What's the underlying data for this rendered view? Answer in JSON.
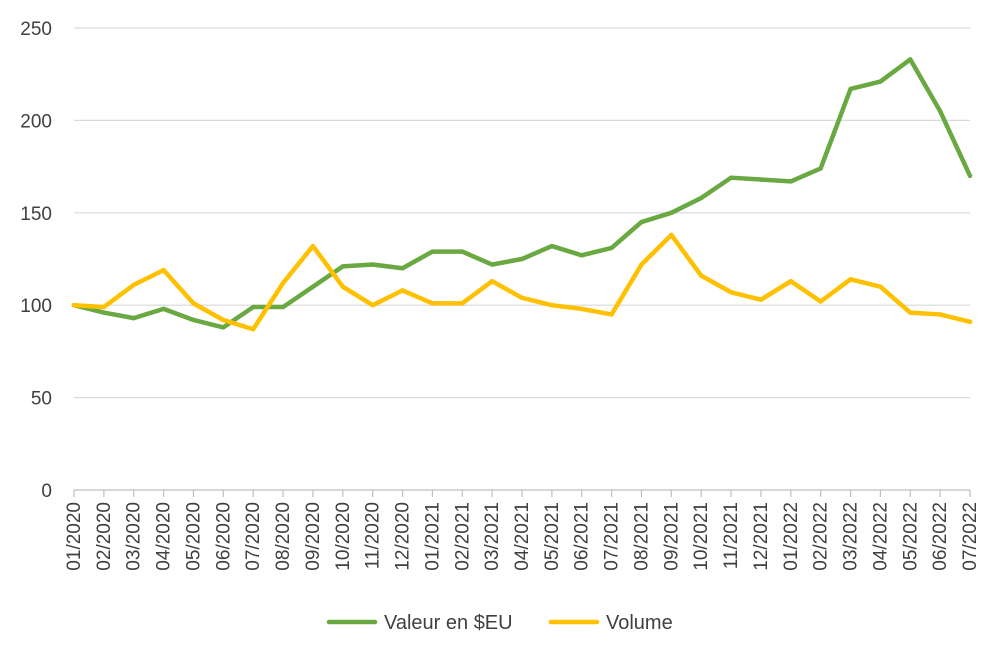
{
  "chart_data": {
    "type": "line",
    "title": "",
    "xlabel": "",
    "ylabel": "",
    "ylim": [
      0,
      250
    ],
    "yticks": [
      0,
      50,
      100,
      150,
      200,
      250
    ],
    "grid": "horizontal",
    "legend_position": "bottom",
    "categories": [
      "01/2020",
      "02/2020",
      "03/2020",
      "04/2020",
      "05/2020",
      "06/2020",
      "07/2020",
      "08/2020",
      "09/2020",
      "10/2020",
      "11/2020",
      "12/2020",
      "01/2021",
      "02/2021",
      "03/2021",
      "04/2021",
      "05/2021",
      "06/2021",
      "07/2021",
      "08/2021",
      "09/2021",
      "10/2021",
      "11/2021",
      "12/2021",
      "01/2022",
      "02/2022",
      "03/2022",
      "04/2022",
      "05/2022",
      "06/2022",
      "07/2022"
    ],
    "series": [
      {
        "name": "Valeur en $EU",
        "color": "#6aa842",
        "values": [
          100,
          96,
          93,
          98,
          92,
          88,
          99,
          99,
          110,
          121,
          122,
          120,
          129,
          129,
          122,
          125,
          132,
          127,
          131,
          145,
          150,
          158,
          169,
          168,
          167,
          174,
          217,
          221,
          233,
          205,
          170
        ]
      },
      {
        "name": "Volume",
        "color": "#ffc000",
        "values": [
          100,
          99,
          111,
          119,
          101,
          92,
          87,
          112,
          132,
          110,
          100,
          108,
          101,
          101,
          113,
          104,
          100,
          98,
          95,
          122,
          138,
          116,
          107,
          103,
          113,
          102,
          114,
          110,
          96,
          95,
          91
        ]
      }
    ]
  }
}
